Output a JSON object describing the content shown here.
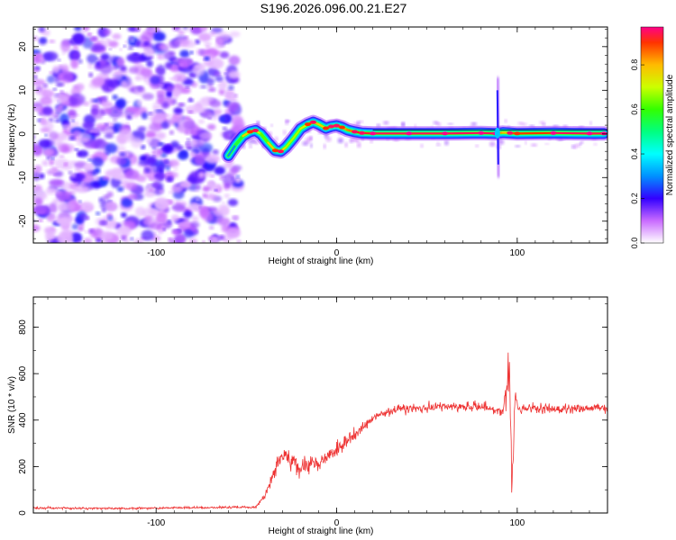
{
  "page_title": "S196.2026.096.00.21.E27",
  "chart_data": [
    {
      "type": "heatmap",
      "name": "spectrogram",
      "xlabel": "Height of straight line (km)",
      "ylabel": "Frequency (Hz)",
      "xlim": [
        -168,
        150
      ],
      "ylim": [
        -25,
        24.5
      ],
      "xticks": [
        {
          "value": -100,
          "label": "-100"
        },
        {
          "value": 0,
          "label": "0"
        },
        {
          "value": 100,
          "label": "100"
        }
      ],
      "yticks": [
        {
          "value": 20,
          "label": "20"
        },
        {
          "value": 10,
          "label": "10"
        },
        {
          "value": 0,
          "label": "0"
        },
        {
          "value": -10,
          "label": "-10"
        },
        {
          "value": -20,
          "label": "-20"
        }
      ],
      "noise_region_x": [
        -168,
        -54
      ],
      "trace": {
        "x": [
          -60,
          -56,
          -52,
          -48,
          -45,
          -42,
          -38,
          -34,
          -31,
          -28,
          -24,
          -20,
          -16,
          -13,
          -10,
          -6,
          -3,
          0,
          3,
          6,
          10,
          14,
          20,
          40,
          60,
          80,
          88,
          92,
          96,
          100,
          120,
          140,
          148
        ],
        "freq": [
          -5,
          -2.5,
          -0.5,
          0.5,
          0.8,
          0,
          -2,
          -3.8,
          -4,
          -3,
          -1,
          1.2,
          2.2,
          2.7,
          2.2,
          1.3,
          1.7,
          1.9,
          1.5,
          0.9,
          0.5,
          0.2,
          0.1,
          0.1,
          0.1,
          0.2,
          0.1,
          0.3,
          0.2,
          0.1,
          0.2,
          0.1,
          0.1
        ],
        "amp": [
          0.2,
          0.4,
          0.7,
          0.85,
          0.9,
          0.55,
          0.7,
          0.85,
          0.9,
          0.6,
          0.75,
          0.6,
          0.85,
          0.9,
          0.7,
          0.85,
          0.9,
          0.9,
          0.85,
          0.8,
          0.9,
          0.9,
          0.95,
          0.95,
          0.95,
          0.95,
          0.95,
          0.7,
          0.9,
          0.85,
          0.95,
          0.95,
          0.95
        ]
      },
      "vertical_feature": {
        "x": 89,
        "freq_range": [
          -10,
          13
        ]
      },
      "colorbar": {
        "label": "Normalized spectral amplitude",
        "range": [
          0,
          0.97
        ],
        "ticks": [
          {
            "value": 0.0,
            "label": "0.0"
          },
          {
            "value": 0.2,
            "label": "0.2"
          },
          {
            "value": 0.4,
            "label": "0.4"
          },
          {
            "value": 0.6,
            "label": "0.6"
          },
          {
            "value": 0.8,
            "label": "0.8"
          }
        ],
        "stops": [
          {
            "value": 0.0,
            "color": "#ffffff"
          },
          {
            "value": 0.1,
            "color": "#c96bff"
          },
          {
            "value": 0.2,
            "color": "#3300ff"
          },
          {
            "value": 0.3,
            "color": "#0090ff"
          },
          {
            "value": 0.4,
            "color": "#00ffff"
          },
          {
            "value": 0.5,
            "color": "#00ff80"
          },
          {
            "value": 0.6,
            "color": "#33ff00"
          },
          {
            "value": 0.7,
            "color": "#ccff00"
          },
          {
            "value": 0.8,
            "color": "#ffbb00"
          },
          {
            "value": 0.9,
            "color": "#ff3300"
          },
          {
            "value": 0.97,
            "color": "#ff0088"
          }
        ]
      }
    },
    {
      "type": "line",
      "name": "snr",
      "xlabel": "Height of straight line (km)",
      "ylabel": "SNR (10 * v/v)",
      "xlim": [
        -168,
        150
      ],
      "ylim": [
        0,
        930
      ],
      "line_color": "#ee3333",
      "xticks": [
        {
          "value": -100,
          "label": "-100"
        },
        {
          "value": 0,
          "label": "0"
        },
        {
          "value": 100,
          "label": "100"
        }
      ],
      "yticks": [
        {
          "value": 0,
          "label": "0"
        },
        {
          "value": 200,
          "label": "200"
        },
        {
          "value": 400,
          "label": "400"
        },
        {
          "value": 600,
          "label": "600"
        },
        {
          "value": 800,
          "label": "800"
        }
      ],
      "envelope": {
        "x": [
          -168,
          -120,
          -80,
          -45,
          -40,
          -35,
          -32,
          -28,
          -25,
          -20,
          -15,
          -10,
          -5,
          0,
          5,
          10,
          15,
          20,
          25,
          30,
          40,
          50,
          60,
          70,
          80,
          88,
          92,
          94,
          95,
          96,
          97,
          98,
          99,
          100,
          102,
          110,
          120,
          130,
          140,
          150
        ],
        "y": [
          22,
          20,
          23,
          25,
          70,
          170,
          220,
          250,
          230,
          200,
          210,
          220,
          240,
          270,
          300,
          340,
          370,
          410,
          430,
          440,
          450,
          455,
          460,
          455,
          460,
          445,
          430,
          520,
          700,
          540,
          180,
          300,
          560,
          460,
          445,
          450,
          450,
          450,
          450,
          455
        ],
        "noise": [
          6,
          6,
          6,
          6,
          15,
          40,
          55,
          60,
          60,
          55,
          50,
          45,
          40,
          40,
          38,
          35,
          30,
          28,
          25,
          25,
          25,
          25,
          25,
          25,
          25,
          25,
          30,
          120,
          180,
          160,
          140,
          120,
          60,
          30,
          25,
          25,
          25,
          25,
          25,
          25
        ]
      }
    }
  ]
}
